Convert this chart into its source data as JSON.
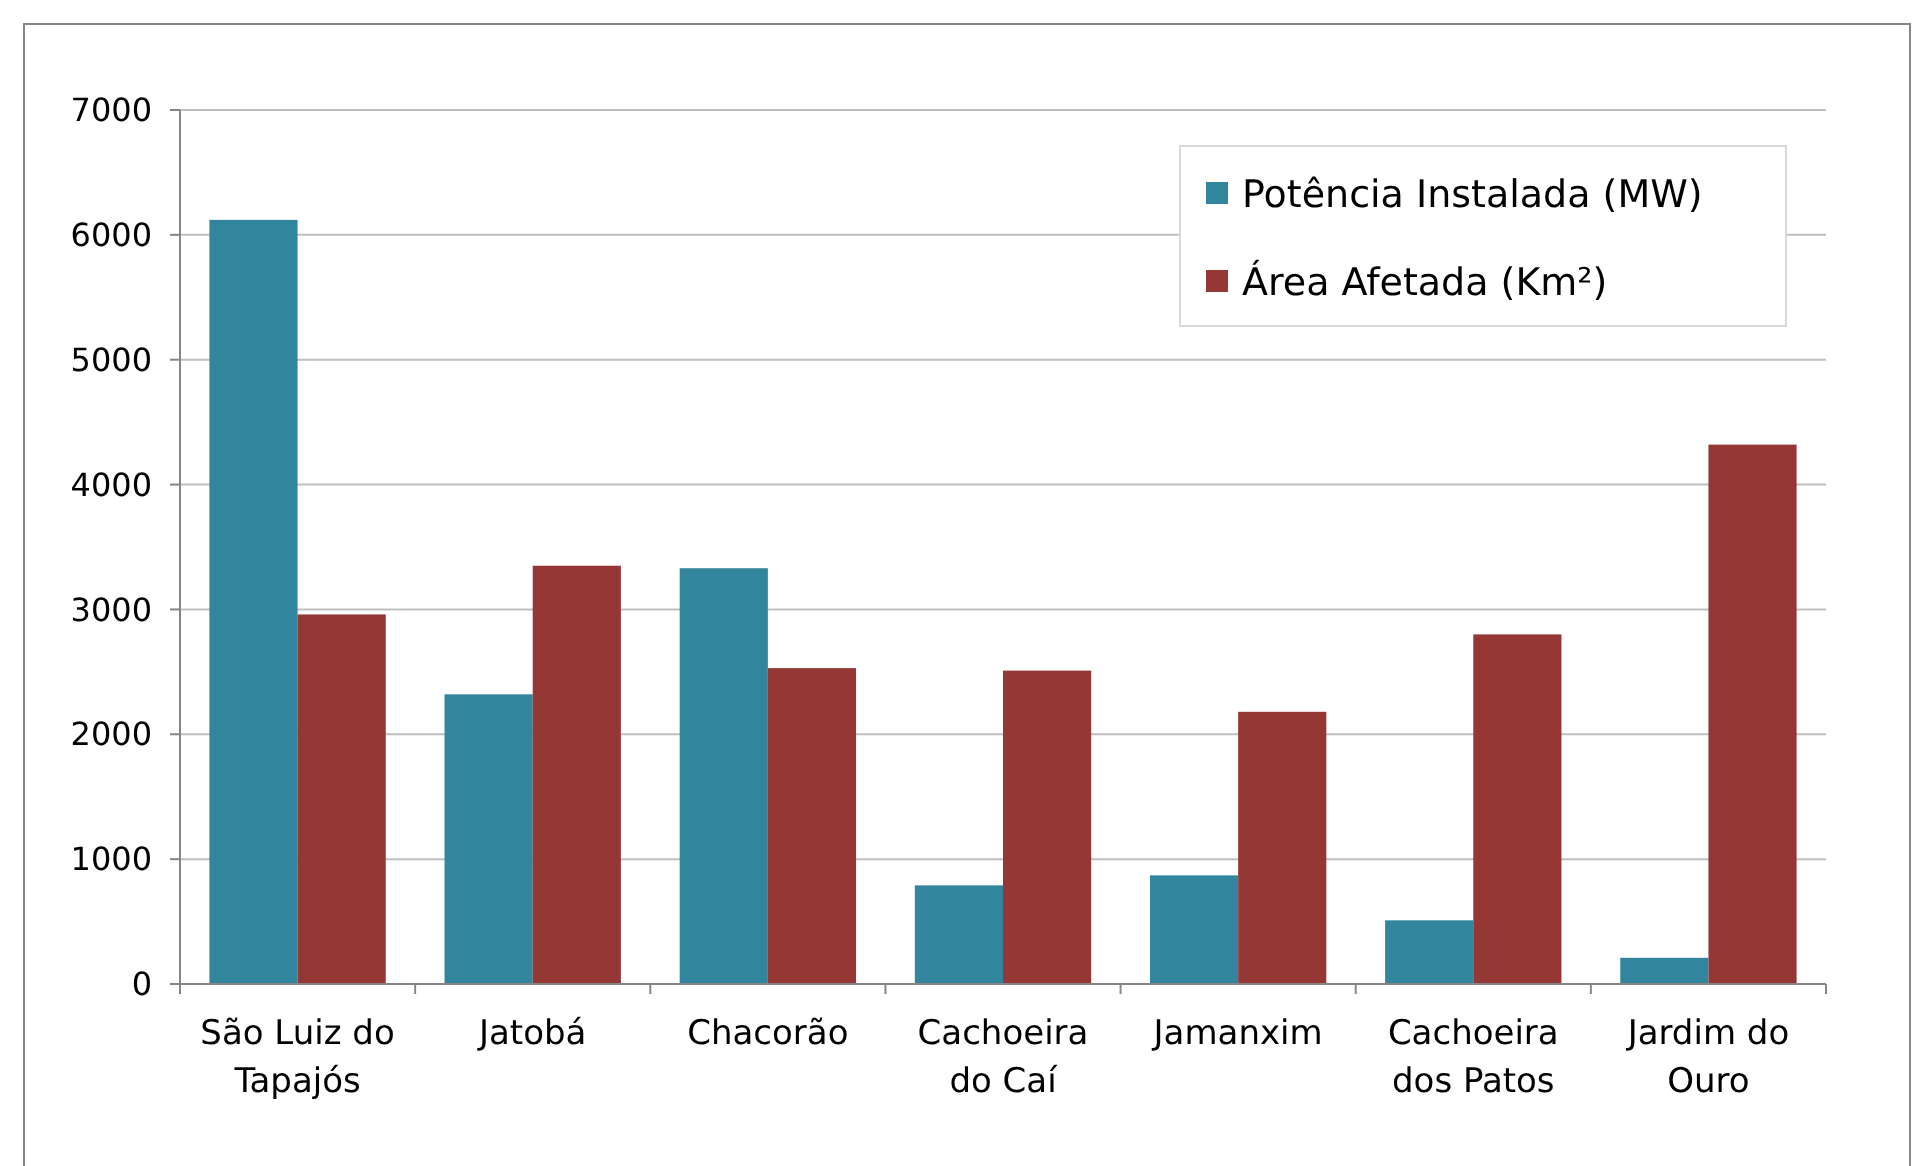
{
  "chart_data": {
    "type": "bar",
    "categories": [
      "São Luiz do Tapajós",
      "Jatobá",
      "Chacorão",
      "Cachoeira do Caí",
      "Jamanxim",
      "Cachoeira dos Patos",
      "Jardim do Ouro"
    ],
    "series": [
      {
        "name": "Potência Instalada (MW)",
        "color": "#31859c",
        "values": [
          6120,
          2320,
          3330,
          790,
          870,
          510,
          210
        ]
      },
      {
        "name": "Área Afetada (Km²)",
        "color": "#953735",
        "values": [
          2960,
          3350,
          2530,
          2510,
          2180,
          2800,
          4320
        ]
      }
    ],
    "ylim": [
      0,
      7000
    ],
    "yticks": [
      0,
      1000,
      2000,
      3000,
      4000,
      5000,
      6000,
      7000
    ],
    "grid": "y",
    "legend": "top right"
  }
}
